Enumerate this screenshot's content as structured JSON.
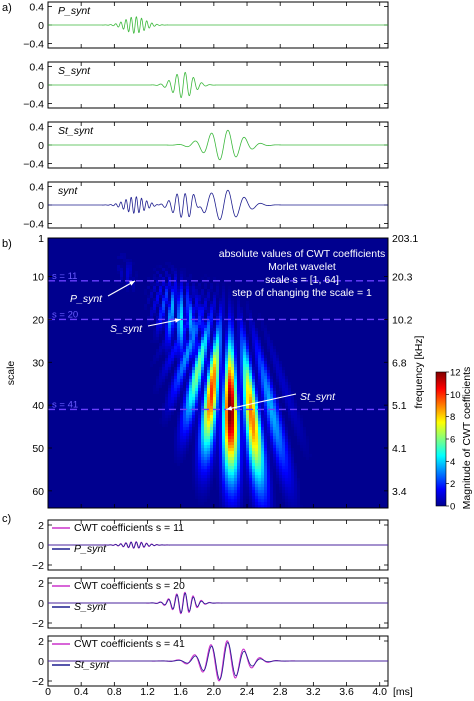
{
  "figure": {
    "x_unit_label": "[ms]"
  },
  "panel_labels": [
    "a)",
    "b)",
    "c)"
  ],
  "chart_data": [
    {
      "type": "line",
      "panel": "a",
      "subplot": 1,
      "label": "P_synt",
      "color": "#3cb83c",
      "xlim": [
        0,
        4.1
      ],
      "ylim": [
        -0.5,
        0.5
      ],
      "yticks": [
        0.4,
        0,
        -0.4
      ],
      "signal": {
        "center_ms": 1.05,
        "width_ms": 0.17,
        "freq_khz": 16,
        "amp": 0.18
      }
    },
    {
      "type": "line",
      "panel": "a",
      "subplot": 2,
      "label": "S_synt",
      "color": "#3cb83c",
      "xlim": [
        0,
        4.1
      ],
      "ylim": [
        -0.5,
        0.5
      ],
      "yticks": [
        0.4,
        0,
        -0.4
      ],
      "signal": {
        "center_ms": 1.63,
        "width_ms": 0.17,
        "freq_khz": 10,
        "amp": 0.28
      }
    },
    {
      "type": "line",
      "panel": "a",
      "subplot": 3,
      "label": "St_synt",
      "color": "#3cb83c",
      "xlim": [
        0,
        4.1
      ],
      "ylim": [
        -0.5,
        0.5
      ],
      "yticks": [
        0.4,
        0,
        -0.4
      ],
      "signal": {
        "center_ms": 2.12,
        "width_ms": 0.3,
        "freq_khz": 5,
        "amp": 0.33
      }
    },
    {
      "type": "line",
      "panel": "a",
      "subplot": 4,
      "label": "synt",
      "color": "#1f1f8f",
      "xlim": [
        0,
        4.1
      ],
      "ylim": [
        -0.5,
        0.5
      ],
      "yticks": [
        0.4,
        0,
        -0.4
      ],
      "components": [
        "P_synt",
        "S_synt",
        "St_synt"
      ]
    },
    {
      "type": "heatmap",
      "panel": "b",
      "xlim": [
        0,
        4.1
      ],
      "scale_range": [
        1,
        64
      ],
      "yticks": [
        1,
        10,
        20,
        30,
        40,
        50,
        60
      ],
      "ylabel": "scale",
      "right_ticks": [
        "203.1",
        "20.3",
        "10.2",
        "6.8",
        "5.1",
        "4.1",
        "3.4"
      ],
      "right_label": "frequency [kHz]",
      "info_lines": [
        "absolute values of CWT coefficients",
        "Morlet wavelet",
        "scale s = [1, 64]",
        "step of changing the scale = 1"
      ],
      "dashed_scales": [
        {
          "scale": 11,
          "label": "s = 11"
        },
        {
          "scale": 20,
          "label": "s = 20"
        },
        {
          "scale": 41,
          "label": "s = 41"
        }
      ],
      "annotations": [
        {
          "text": "P_synt",
          "at_ms": 1.05,
          "at_scale": 11
        },
        {
          "text": "S_synt",
          "at_ms": 1.6,
          "at_scale": 20
        },
        {
          "text": "St_synt",
          "at_ms": 2.15,
          "at_scale": 41
        }
      ],
      "blobs": [
        {
          "name": "P",
          "center_ms": 0.95,
          "center_scale": 9,
          "radius_ms": 0.1,
          "radius_scale": 4,
          "peak": 1.2
        },
        {
          "name": "S",
          "center_ms": 1.6,
          "center_scale": 20,
          "radius_ms": 0.25,
          "radius_scale": 8,
          "peak": 4.5
        },
        {
          "name": "St",
          "center_ms": 2.2,
          "center_scale": 41,
          "radius_ms": 0.45,
          "radius_scale": 16,
          "peak": 12.5
        }
      ],
      "colorbar": {
        "range": [
          0,
          12
        ],
        "ticks": [
          0,
          2,
          4,
          6,
          8,
          10,
          12
        ],
        "label": "Magnitude of CWT coefficients"
      }
    },
    {
      "type": "line",
      "panel": "c",
      "subplot": 1,
      "xlim": [
        0,
        4.1
      ],
      "ylim": [
        -2.5,
        2.5
      ],
      "yticks": [
        2,
        0,
        -2
      ],
      "series": [
        {
          "name": "CWT coefficients s = 11",
          "color": "#cc33cc"
        },
        {
          "name": "P_synt",
          "color": "#1f1f8f"
        }
      ],
      "signal": {
        "center_ms": 1.05,
        "width_ms": 0.17,
        "freq_khz": 16,
        "amp": 0.3
      }
    },
    {
      "type": "line",
      "panel": "c",
      "subplot": 2,
      "xlim": [
        0,
        4.1
      ],
      "ylim": [
        -2.5,
        2.5
      ],
      "yticks": [
        2,
        0,
        -2
      ],
      "series": [
        {
          "name": "CWT coefficients s = 20",
          "color": "#cc33cc"
        },
        {
          "name": "S_synt",
          "color": "#1f1f8f"
        }
      ],
      "signal": {
        "center_ms": 1.63,
        "width_ms": 0.17,
        "freq_khz": 10,
        "amp": 1.0
      }
    },
    {
      "type": "line",
      "panel": "c",
      "subplot": 3,
      "xlim": [
        0,
        4.1
      ],
      "ylim": [
        -2.5,
        2.5
      ],
      "yticks": [
        2,
        0,
        -2
      ],
      "series": [
        {
          "name": "CWT coefficients s = 41",
          "color": "#cc33cc"
        },
        {
          "name": "St_synt",
          "color": "#1f1f8f"
        }
      ],
      "signal": {
        "center_ms": 2.12,
        "width_ms": 0.3,
        "freq_khz": 5,
        "amp": 1.9
      }
    }
  ],
  "x_ticks": [
    "0",
    "0.4",
    "0.8",
    "1.2",
    "1.6",
    "2.0",
    "2.4",
    "2.8",
    "3.2",
    "3.6",
    "4.0"
  ]
}
